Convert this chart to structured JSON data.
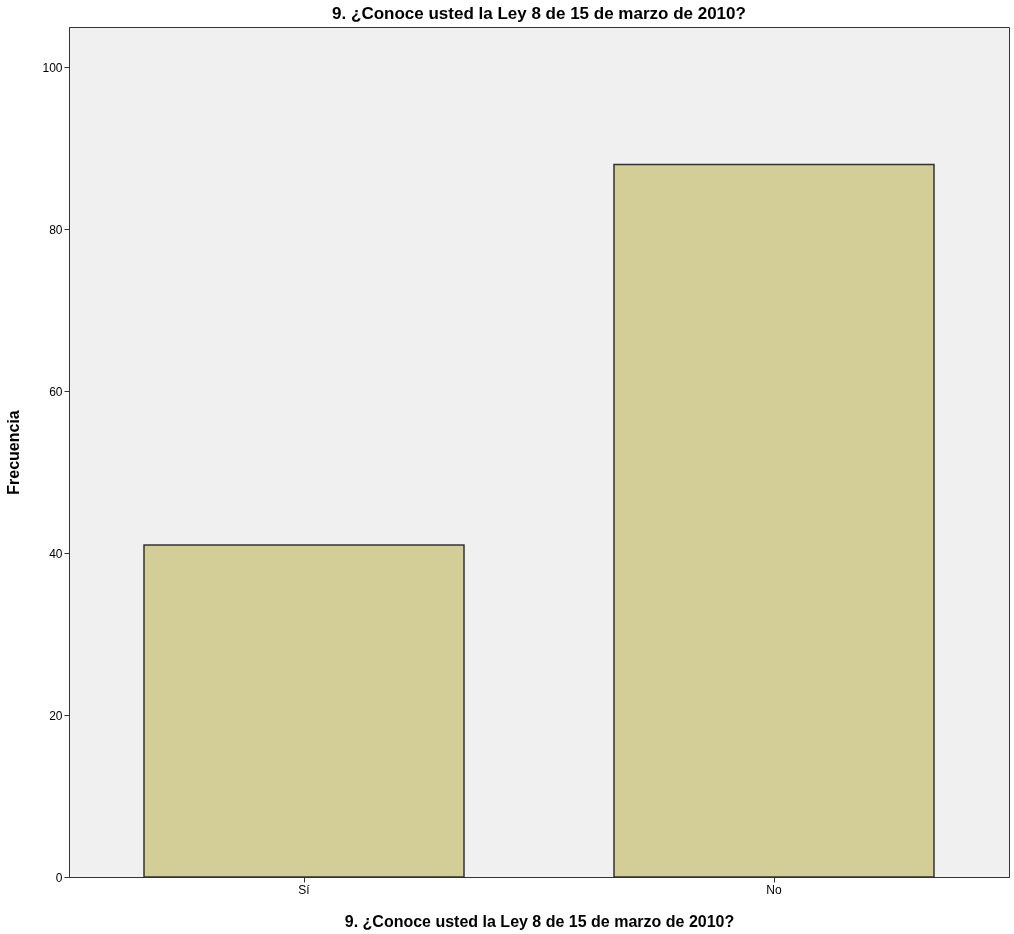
{
  "chart_data": {
    "type": "bar",
    "title": "9. ¿Conoce usted la Ley 8 de 15 de marzo de 2010?",
    "xlabel": "9. ¿Conoce usted la Ley 8 de 15 de marzo de 2010?",
    "ylabel": "Frecuencia",
    "categories": [
      "Sí",
      "No"
    ],
    "values": [
      41,
      88
    ],
    "color": "#d3cd98",
    "ylim": [
      0,
      105
    ],
    "yticks": [
      0,
      20,
      40,
      60,
      80,
      100
    ],
    "grid": false
  }
}
